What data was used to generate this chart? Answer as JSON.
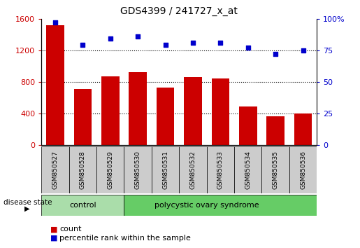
{
  "title": "GDS4399 / 241727_x_at",
  "samples": [
    "GSM850527",
    "GSM850528",
    "GSM850529",
    "GSM850530",
    "GSM850531",
    "GSM850532",
    "GSM850533",
    "GSM850534",
    "GSM850535",
    "GSM850536"
  ],
  "counts": [
    1520,
    710,
    870,
    920,
    730,
    860,
    840,
    490,
    360,
    400
  ],
  "percentiles": [
    97,
    79,
    84,
    86,
    79,
    81,
    81,
    77,
    72,
    75
  ],
  "bar_color": "#cc0000",
  "dot_color": "#0000cc",
  "ylim_left": [
    0,
    1600
  ],
  "ylim_right": [
    0,
    100
  ],
  "yticks_left": [
    0,
    400,
    800,
    1200,
    1600
  ],
  "yticks_right": [
    0,
    25,
    50,
    75,
    100
  ],
  "grid_values": [
    400,
    800,
    1200
  ],
  "control_samples": 3,
  "control_label": "control",
  "disease_label": "polycystic ovary syndrome",
  "disease_state_label": "disease state",
  "legend_count_label": "count",
  "legend_percentile_label": "percentile rank within the sample",
  "control_color": "#aaddaa",
  "disease_color": "#66cc66",
  "xlabel_bg": "#cccccc",
  "title_fontsize": 10,
  "axis_fontsize": 8,
  "tick_fontsize": 7
}
